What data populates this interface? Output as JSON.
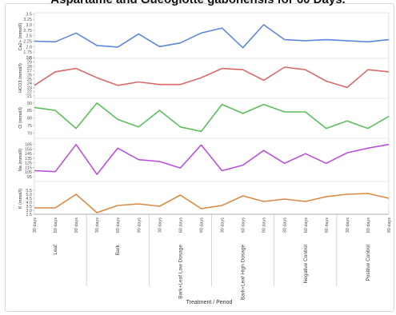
{
  "title": "Aspartame and Gueoglotte gabonensis for 60 Days.",
  "chart_data": {
    "type": "line",
    "x_title": "Treatment / Period",
    "periods": [
      "30 days",
      "60 days",
      "90 days",
      "30 days",
      "60 days",
      "90 days",
      "30 days",
      "60 days",
      "90 days",
      "30 days",
      "60 days",
      "90 days",
      "30 days",
      "60 days",
      "90 days",
      "30 days",
      "60 days",
      "90 days"
    ],
    "groups": [
      {
        "label": "Leaf",
        "count": 3
      },
      {
        "label": "Bark",
        "count": 3
      },
      {
        "label": "Bark+Leaf Low Dosage",
        "count": 3
      },
      {
        "label": "Bark+Leaf High Dosage",
        "count": 3
      },
      {
        "label": "Negative Control",
        "count": 3
      },
      {
        "label": "Positive Control",
        "count": 3
      }
    ],
    "panels": [
      {
        "ylabel": "Ca2+ (mmol/l)",
        "color": "#5b87dc",
        "ylim": [
          1.5,
          3.4
        ],
        "ticks": [
          "1.5",
          "1.75",
          "2.0",
          "2.25",
          "2.5",
          "2.75",
          "3.0",
          "3.25",
          "3.5"
        ],
        "tick_values": [
          1.5,
          1.75,
          2.0,
          2.25,
          2.5,
          2.75,
          3.0,
          3.25,
          3.5
        ],
        "values": [
          2.25,
          2.22,
          2.62,
          2.05,
          1.98,
          2.58,
          2.0,
          2.17,
          2.62,
          2.85,
          1.95,
          3.0,
          2.32,
          2.27,
          2.32,
          2.27,
          2.22,
          2.32
        ]
      },
      {
        "ylabel": "HCO3 (mmol/l)",
        "color": "#d9696b",
        "ylim": [
          21,
          29.5
        ],
        "ticks": [
          "21",
          "22",
          "23",
          "24",
          "25",
          "26",
          "27",
          "28",
          "29",
          "30"
        ],
        "tick_values": [
          21,
          22,
          23,
          24,
          25,
          26,
          27,
          28,
          29,
          30
        ],
        "values": [
          23.5,
          26.7,
          27.5,
          25.3,
          23.5,
          24.3,
          23.7,
          23.7,
          25.3,
          27.5,
          27.2,
          24.7,
          27.8,
          27.2,
          24.5,
          23.0,
          27.2,
          26.7
        ]
      },
      {
        "ylabel": "Cl (mmol/l)",
        "color": "#5cbf5c",
        "ylim": [
          68,
          92
        ],
        "ticks": [
          "70",
          "75",
          "80",
          "85",
          "90"
        ],
        "tick_values": [
          70,
          75,
          80,
          85,
          90
        ],
        "values": [
          87,
          85,
          73,
          90,
          79,
          74,
          85,
          74,
          71,
          89,
          83,
          89,
          84,
          84,
          73,
          78,
          73,
          81
        ]
      },
      {
        "ylabel": "Na (mmol/l)",
        "color": "#b84fde",
        "ylim": [
          88,
          175
        ],
        "ticks": [
          "95",
          "105",
          "115",
          "125",
          "135",
          "145",
          "155",
          "165"
        ],
        "tick_values": [
          95,
          105,
          115,
          125,
          135,
          145,
          155,
          165
        ],
        "values": [
          108,
          106,
          165,
          100,
          157,
          132,
          128,
          114,
          164,
          108,
          120,
          152,
          124,
          145,
          124,
          147,
          157,
          165
        ]
      },
      {
        "ylabel": "K (mmol/l)",
        "color": "#d98a42",
        "ylim": [
          2.5,
          6.4
        ],
        "ticks": [
          "2.5",
          "3.0",
          "3.5",
          "4.0",
          "4.5",
          "5.0",
          "5.5"
        ],
        "tick_values": [
          2.5,
          3.0,
          3.5,
          4.0,
          4.5,
          5.0,
          5.5
        ],
        "values": [
          3.3,
          3.3,
          5.0,
          2.7,
          3.6,
          3.8,
          3.5,
          4.9,
          3.2,
          3.6,
          4.8,
          4.1,
          4.4,
          4.1,
          4.7,
          5.0,
          5.1,
          4.5
        ]
      }
    ]
  }
}
